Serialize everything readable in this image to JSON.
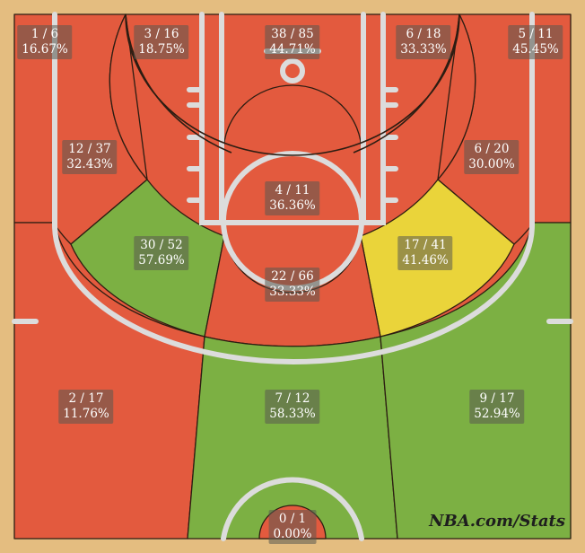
{
  "chart_data": {
    "type": "heatmap",
    "zones": [
      {
        "id": "lc3",
        "label": "1 / 6",
        "pct": "16.67%",
        "level": "cold"
      },
      {
        "id": "lw3",
        "label": "3 / 16",
        "pct": "18.75%",
        "level": "cold"
      },
      {
        "id": "top3",
        "label": "38 / 85",
        "pct": "44.71%",
        "level": "cold"
      },
      {
        "id": "rw3",
        "label": "6 / 18",
        "pct": "33.33%",
        "level": "cold"
      },
      {
        "id": "rc3",
        "label": "5 / 11",
        "pct": "45.45%",
        "level": "cold"
      },
      {
        "id": "lmid3",
        "label": "12 / 37",
        "pct": "32.43%",
        "level": "cold"
      },
      {
        "id": "paint",
        "label": "4 / 11",
        "pct": "36.36%",
        "level": "cold"
      },
      {
        "id": "rmid3",
        "label": "6 / 20",
        "pct": "30.00%",
        "level": "cold"
      },
      {
        "id": "lwing",
        "label": "30 / 52",
        "pct": "57.69%",
        "level": "hot"
      },
      {
        "id": "rwing",
        "label": "17 / 41",
        "pct": "41.46%",
        "level": "avg"
      },
      {
        "id": "center",
        "label": "22 / 66",
        "pct": "33.33%",
        "level": "cold"
      },
      {
        "id": "lbase",
        "label": "2 / 17",
        "pct": "11.76%",
        "level": "cold"
      },
      {
        "id": "lane",
        "label": "7 / 12",
        "pct": "58.33%",
        "level": "hot"
      },
      {
        "id": "rbase",
        "label": "9 / 17",
        "pct": "52.94%",
        "level": "hot"
      },
      {
        "id": "rim",
        "label": "0 / 1",
        "pct": "0.00%",
        "level": "cold"
      }
    ],
    "colors": {
      "cold": "#e35a3e",
      "avg": "#ead43a",
      "hot": "#7cb043"
    }
  },
  "watermark": "NBA.com/Stats"
}
